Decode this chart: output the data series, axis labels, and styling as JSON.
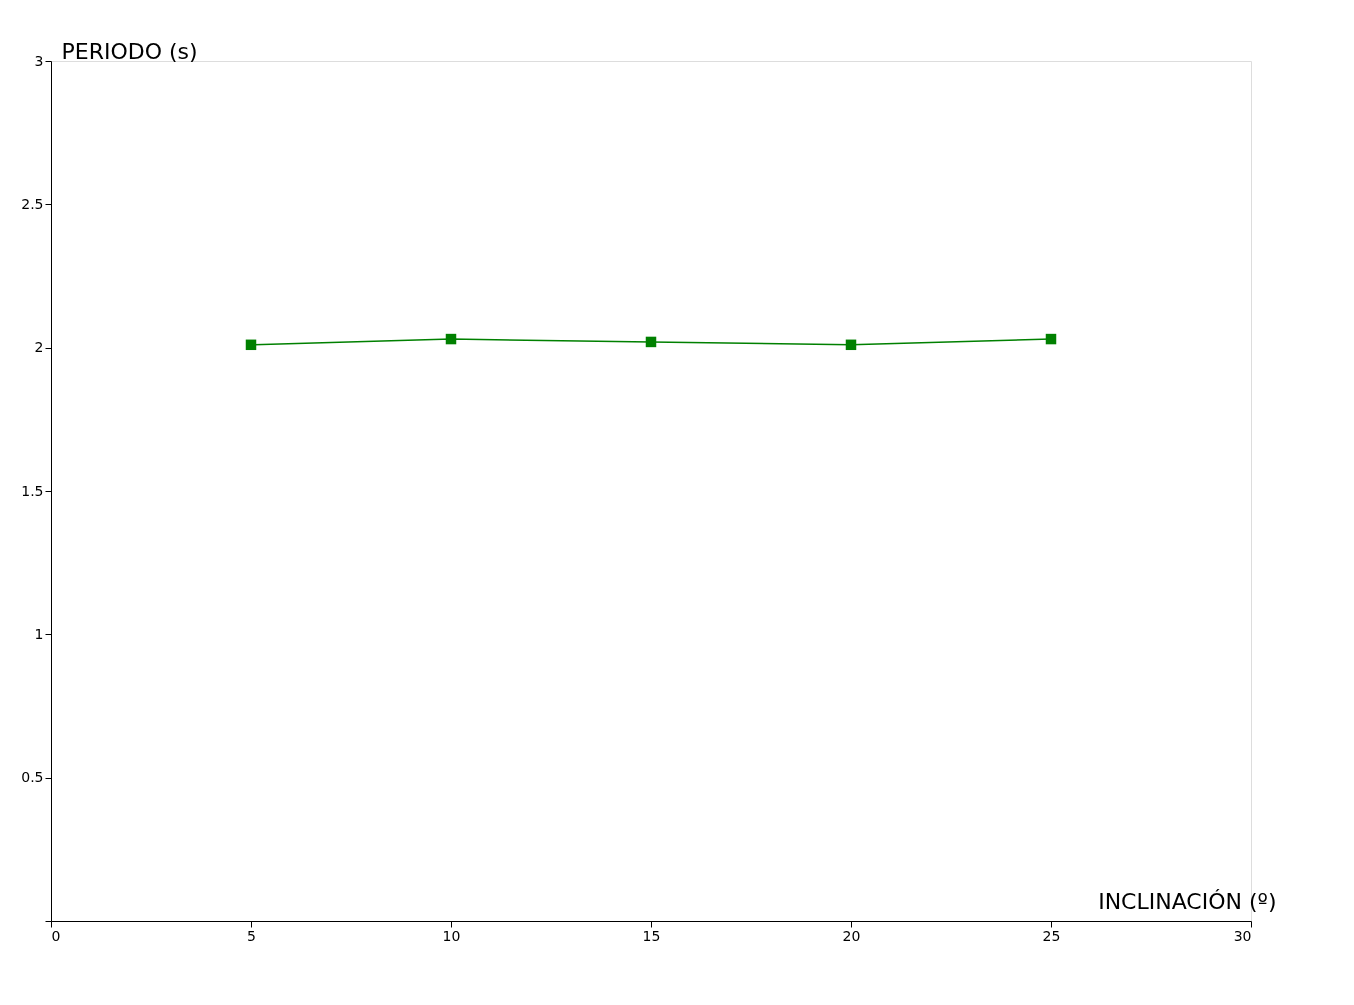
{
  "chart_data": {
    "type": "line",
    "xlabel": "INCLINACIÓN (º)",
    "ylabel": "PERIODO (s)",
    "x": [
      5,
      10,
      15,
      20,
      25
    ],
    "series": [
      {
        "color": "#008000",
        "values": [
          2.01,
          2.03,
          2.02,
          2.01,
          2.03
        ]
      }
    ],
    "xlim": [
      0,
      30
    ],
    "xticks": [
      0,
      5,
      10,
      15,
      20,
      25,
      30
    ],
    "ylim": [
      0,
      3
    ],
    "yticks": [
      {
        "value": 0,
        "label": null
      },
      0.5,
      1,
      1.5,
      2,
      2.5,
      3
    ],
    "grid": false,
    "marker": "square",
    "line_style": "solid"
  }
}
